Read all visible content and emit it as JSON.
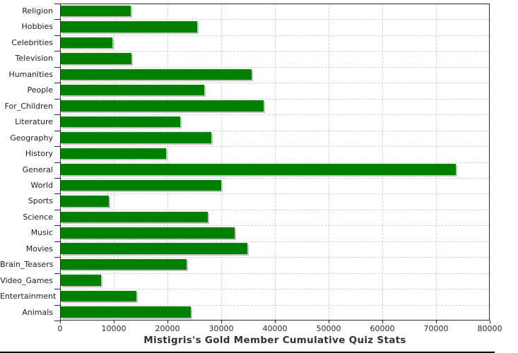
{
  "title": "Mistigris's Gold Member Cumulative Quiz Stats",
  "colors": {
    "bar": "#008000",
    "bar_shadow": "#c3c3c3",
    "grid": "#ccd2d9",
    "axis": "#2b2b2b",
    "label_text": "#1c1c1c",
    "title_text": "#333333"
  },
  "chart_data": {
    "type": "bar",
    "orientation": "horizontal",
    "title": "Mistigris's Gold Member Cumulative Quiz Stats",
    "xlabel": "",
    "ylabel": "",
    "xlim": [
      0,
      80000
    ],
    "grid": true,
    "legend": false,
    "x_tick_values": [
      0,
      10000,
      20000,
      30000,
      40000,
      50000,
      60000,
      70000,
      80000
    ],
    "x_tick_labels": [
      "0",
      "10000",
      "20000",
      "30000",
      "40000",
      "50000",
      "60000",
      "70000",
      "80000"
    ],
    "categories": [
      "Religion",
      "Hobbies",
      "Celebrities",
      "Television",
      "Humanities",
      "People",
      "For_Children",
      "Literature",
      "Geography",
      "History",
      "General",
      "World",
      "Sports",
      "Science",
      "Music",
      "Movies",
      "Brain_Teasers",
      "Video_Games",
      "Entertainment",
      "Animals"
    ],
    "values": [
      13100,
      25500,
      9700,
      13300,
      35700,
      26800,
      37900,
      22400,
      28100,
      19800,
      73700,
      30000,
      9100,
      27500,
      32500,
      34900,
      23600,
      7600,
      14200,
      24400
    ]
  }
}
